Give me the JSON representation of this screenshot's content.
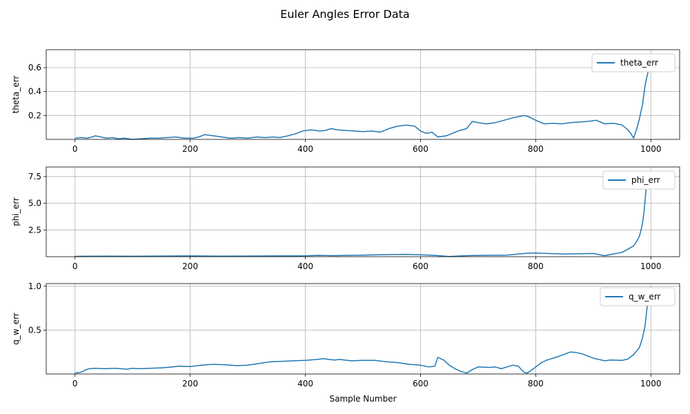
{
  "figure": {
    "title": "Euler Angles Error Data"
  },
  "colors": {
    "series": "#1f77b4",
    "grid": "#b0b0b0"
  },
  "chart_data": [
    {
      "type": "line",
      "ylabel": "theta_err",
      "xlabel": "",
      "xlim": [
        -50,
        1050
      ],
      "ylim": [
        0,
        0.75
      ],
      "xticks": [
        0,
        200,
        400,
        600,
        800,
        1000
      ],
      "xtick_labels": [
        "0",
        "200",
        "400",
        "600",
        "800",
        "1000"
      ],
      "yticks": [
        0.2,
        0.4,
        0.6
      ],
      "ytick_labels": [
        "0.2",
        "0.4",
        "0.6"
      ],
      "grid": true,
      "legend_position": "upper right",
      "series": [
        {
          "name": "theta_err",
          "x": [
            0,
            10,
            20,
            30,
            35,
            45,
            55,
            65,
            75,
            85,
            100,
            115,
            130,
            145,
            160,
            175,
            190,
            205,
            215,
            225,
            240,
            255,
            270,
            285,
            300,
            315,
            330,
            345,
            355,
            370,
            385,
            395,
            410,
            425,
            435,
            445,
            455,
            470,
            485,
            500,
            515,
            530,
            545,
            560,
            575,
            590,
            600,
            610,
            620,
            630,
            645,
            655,
            665,
            680,
            690,
            700,
            715,
            730,
            745,
            760,
            770,
            780,
            790,
            800,
            815,
            830,
            845,
            860,
            875,
            890,
            905,
            920,
            935,
            950,
            960,
            965,
            970,
            975,
            980,
            985,
            990,
            993,
            996,
            999
          ],
          "values": [
            0.01,
            0.015,
            0.01,
            0.02,
            0.03,
            0.02,
            0.01,
            0.015,
            0.005,
            0.01,
            0.0,
            0.005,
            0.01,
            0.01,
            0.015,
            0.02,
            0.01,
            0.01,
            0.02,
            0.04,
            0.03,
            0.02,
            0.01,
            0.015,
            0.01,
            0.02,
            0.015,
            0.02,
            0.015,
            0.03,
            0.05,
            0.07,
            0.08,
            0.07,
            0.075,
            0.09,
            0.08,
            0.075,
            0.07,
            0.065,
            0.07,
            0.06,
            0.09,
            0.11,
            0.12,
            0.11,
            0.07,
            0.05,
            0.06,
            0.02,
            0.03,
            0.05,
            0.07,
            0.09,
            0.15,
            0.14,
            0.13,
            0.14,
            0.16,
            0.18,
            0.19,
            0.2,
            0.185,
            0.16,
            0.13,
            0.135,
            0.13,
            0.14,
            0.145,
            0.15,
            0.16,
            0.13,
            0.135,
            0.12,
            0.08,
            0.05,
            0.01,
            0.08,
            0.17,
            0.28,
            0.45,
            0.52,
            0.58,
            0.65
          ]
        }
      ]
    },
    {
      "type": "line",
      "ylabel": "phi_err",
      "xlabel": "",
      "xlim": [
        -50,
        1050
      ],
      "ylim": [
        0,
        8.4
      ],
      "xticks": [
        0,
        200,
        400,
        600,
        800,
        1000
      ],
      "xtick_labels": [
        "0",
        "200",
        "400",
        "600",
        "800",
        "1000"
      ],
      "yticks": [
        2.5,
        5.0,
        7.5
      ],
      "ytick_labels": [
        "2.5",
        "5.0",
        "7.5"
      ],
      "grid": true,
      "legend_position": "upper right",
      "series": [
        {
          "name": "phi_err",
          "x": [
            0,
            50,
            100,
            150,
            200,
            250,
            300,
            350,
            400,
            420,
            450,
            500,
            550,
            575,
            600,
            625,
            650,
            680,
            700,
            750,
            780,
            800,
            820,
            850,
            900,
            920,
            930,
            950,
            960,
            970,
            975,
            980,
            983,
            986,
            988,
            990,
            992,
            994
          ],
          "values": [
            0.03,
            0.05,
            0.04,
            0.06,
            0.07,
            0.05,
            0.06,
            0.07,
            0.08,
            0.12,
            0.1,
            0.15,
            0.2,
            0.22,
            0.18,
            0.12,
            0.02,
            0.1,
            0.12,
            0.15,
            0.3,
            0.35,
            0.3,
            0.25,
            0.3,
            0.1,
            0.2,
            0.4,
            0.7,
            1.0,
            1.4,
            1.9,
            2.5,
            3.3,
            4.2,
            5.3,
            6.5,
            8.0
          ]
        }
      ]
    },
    {
      "type": "line",
      "ylabel": "q_w_err",
      "xlabel": "Sample Number",
      "xlim": [
        -50,
        1050
      ],
      "ylim": [
        0,
        1.03
      ],
      "xticks": [
        0,
        200,
        400,
        600,
        800,
        1000
      ],
      "xtick_labels": [
        "0",
        "200",
        "400",
        "600",
        "800",
        "1000"
      ],
      "yticks": [
        0.5,
        1.0
      ],
      "ytick_labels": [
        "0.5",
        "1.0"
      ],
      "grid": true,
      "legend_position": "upper right",
      "series": [
        {
          "name": "q_w_err",
          "x": [
            0,
            10,
            20,
            25,
            35,
            50,
            70,
            90,
            100,
            110,
            130,
            150,
            170,
            180,
            200,
            220,
            240,
            260,
            280,
            300,
            320,
            340,
            360,
            380,
            400,
            420,
            430,
            450,
            460,
            480,
            500,
            520,
            540,
            560,
            580,
            600,
            615,
            625,
            630,
            640,
            650,
            660,
            670,
            680,
            690,
            700,
            720,
            730,
            740,
            760,
            770,
            775,
            780,
            785,
            790,
            800,
            810,
            820,
            840,
            860,
            870,
            880,
            900,
            920,
            930,
            950,
            960,
            970,
            980,
            985,
            990,
            995
          ],
          "values": [
            0.01,
            0.02,
            0.05,
            0.06,
            0.065,
            0.06,
            0.065,
            0.055,
            0.065,
            0.06,
            0.065,
            0.07,
            0.08,
            0.09,
            0.085,
            0.1,
            0.11,
            0.105,
            0.095,
            0.1,
            0.12,
            0.14,
            0.145,
            0.15,
            0.155,
            0.165,
            0.175,
            0.16,
            0.165,
            0.15,
            0.155,
            0.155,
            0.14,
            0.13,
            0.11,
            0.1,
            0.08,
            0.09,
            0.19,
            0.16,
            0.1,
            0.06,
            0.03,
            0.01,
            0.05,
            0.08,
            0.075,
            0.08,
            0.06,
            0.1,
            0.09,
            0.05,
            0.02,
            0.01,
            0.03,
            0.08,
            0.13,
            0.16,
            0.2,
            0.25,
            0.245,
            0.23,
            0.18,
            0.15,
            0.16,
            0.155,
            0.17,
            0.22,
            0.3,
            0.4,
            0.55,
            0.85
          ]
        }
      ]
    }
  ]
}
